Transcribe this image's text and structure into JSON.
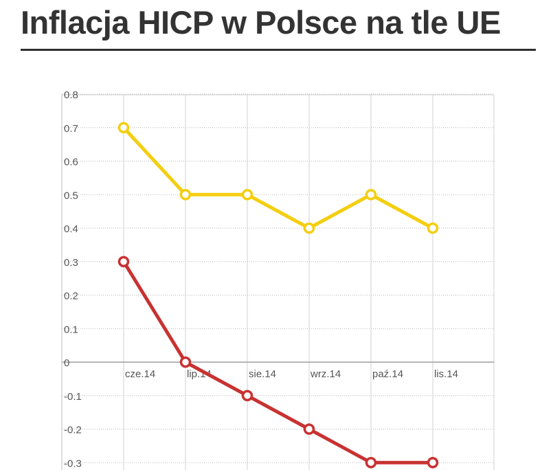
{
  "title": "Inflacja HICP w Polsce na tle UE",
  "chart_data": {
    "type": "line",
    "title": "Inflacja HICP w Polsce na tle UE",
    "categories": [
      "cze.14",
      "lip.14",
      "sie.14",
      "wrz.14",
      "paź.14",
      "lis.14"
    ],
    "series": [
      {
        "color": "#f4ce0f",
        "values": [
          0.7,
          0.5,
          0.5,
          0.4,
          0.5,
          0.4
        ]
      },
      {
        "color": "#c83232",
        "values": [
          0.3,
          0.0,
          -0.1,
          -0.2,
          -0.3,
          -0.3
        ]
      }
    ],
    "y_ticks": [
      "0.8",
      "0.7",
      "0.6",
      "0.5",
      "0.4",
      "0.3",
      "0.2",
      "0.1",
      "0",
      "-0.1",
      "-0.2",
      "-0.3"
    ],
    "y_tick_values": [
      0.8,
      0.7,
      0.6,
      0.5,
      0.4,
      0.3,
      0.2,
      0.1,
      0,
      -0.1,
      -0.2,
      -0.3
    ],
    "ylim": [
      -0.3,
      0.8
    ],
    "xlabel": "",
    "ylabel": "",
    "grid": true,
    "legend": "none"
  }
}
